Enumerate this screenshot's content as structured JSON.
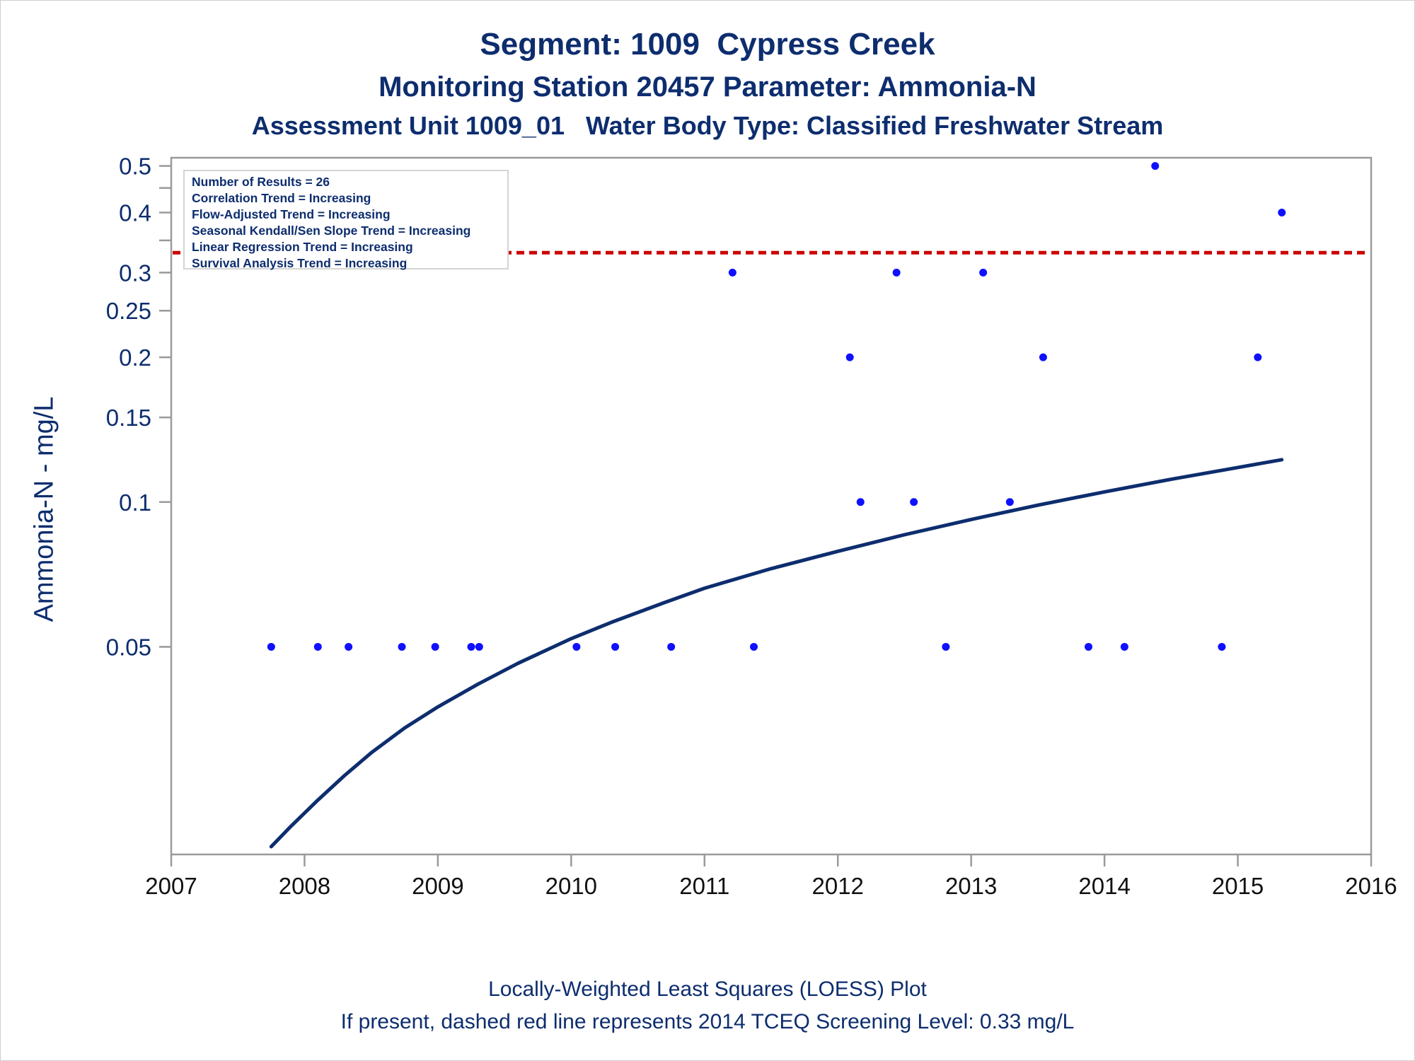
{
  "titles": {
    "line1": "Segment: 1009  Cypress Creek",
    "line2": "Monitoring Station 20457 Parameter: Ammonia-N",
    "line3": "Assessment Unit 1009_01   Water Body Type: Classified Freshwater Stream"
  },
  "footer": {
    "line1": "Locally-Weighted Least Squares (LOESS) Plot",
    "line2": "If present, dashed red line represents 2014 TCEQ Screening Level: 0.33 mg/L"
  },
  "info_box": [
    "Number of Results = 26",
    "Correlation Trend = Increasing",
    "Flow-Adjusted Trend = Increasing",
    "Seasonal Kendall/Sen Slope Trend = Increasing",
    "Linear Regression Trend = Increasing",
    "Survival Analysis Trend = Increasing"
  ],
  "colors": {
    "text": "#0d2d6e",
    "points": "#1010ff",
    "loess": "#0d2d6e",
    "screening": "#cc0000",
    "axis": "#9a9a9a"
  },
  "chart_data": {
    "type": "scatter",
    "ylabel": "Ammonia-N - mg/L",
    "xlabel": "",
    "y_scale": "log",
    "xlim": [
      2007,
      2016
    ],
    "ylim": [
      0.0185,
      0.52
    ],
    "x_ticks": [
      "2007",
      "2008",
      "2009",
      "2010",
      "2011",
      "2012",
      "2013",
      "2014",
      "2015",
      "2016"
    ],
    "y_ticks": [
      "0.05",
      "0.1",
      "0.15",
      "0.2",
      "0.25",
      "0.3",
      "0.4",
      "0.5"
    ],
    "y_minor_ticks": [
      0.35,
      0.45
    ],
    "screening_level": 0.33,
    "points": [
      {
        "x": 2007.75,
        "y": 0.05
      },
      {
        "x": 2008.1,
        "y": 0.05
      },
      {
        "x": 2008.33,
        "y": 0.05
      },
      {
        "x": 2008.73,
        "y": 0.05
      },
      {
        "x": 2008.98,
        "y": 0.05
      },
      {
        "x": 2009.25,
        "y": 0.05
      },
      {
        "x": 2009.31,
        "y": 0.05
      },
      {
        "x": 2010.04,
        "y": 0.05
      },
      {
        "x": 2010.33,
        "y": 0.05
      },
      {
        "x": 2010.75,
        "y": 0.05
      },
      {
        "x": 2011.21,
        "y": 0.3
      },
      {
        "x": 2011.37,
        "y": 0.05
      },
      {
        "x": 2012.09,
        "y": 0.2
      },
      {
        "x": 2012.17,
        "y": 0.1
      },
      {
        "x": 2012.44,
        "y": 0.3
      },
      {
        "x": 2012.57,
        "y": 0.1
      },
      {
        "x": 2012.81,
        "y": 0.05
      },
      {
        "x": 2013.09,
        "y": 0.3
      },
      {
        "x": 2013.29,
        "y": 0.1
      },
      {
        "x": 2013.54,
        "y": 0.2
      },
      {
        "x": 2013.88,
        "y": 0.05
      },
      {
        "x": 2014.15,
        "y": 0.05
      },
      {
        "x": 2014.38,
        "y": 0.5
      },
      {
        "x": 2014.88,
        "y": 0.05
      },
      {
        "x": 2015.15,
        "y": 0.2
      },
      {
        "x": 2015.33,
        "y": 0.4
      }
    ],
    "loess": [
      {
        "x": 2007.75,
        "y": 0.0192
      },
      {
        "x": 2007.9,
        "y": 0.0212
      },
      {
        "x": 2008.1,
        "y": 0.024
      },
      {
        "x": 2008.3,
        "y": 0.027
      },
      {
        "x": 2008.5,
        "y": 0.0301
      },
      {
        "x": 2008.75,
        "y": 0.0339
      },
      {
        "x": 2009.0,
        "y": 0.0375
      },
      {
        "x": 2009.3,
        "y": 0.0418
      },
      {
        "x": 2009.6,
        "y": 0.0462
      },
      {
        "x": 2010.0,
        "y": 0.052
      },
      {
        "x": 2010.3,
        "y": 0.0562
      },
      {
        "x": 2010.7,
        "y": 0.0618
      },
      {
        "x": 2011.0,
        "y": 0.0662
      },
      {
        "x": 2011.5,
        "y": 0.0727
      },
      {
        "x": 2012.0,
        "y": 0.079
      },
      {
        "x": 2012.5,
        "y": 0.0855
      },
      {
        "x": 2013.0,
        "y": 0.092
      },
      {
        "x": 2013.5,
        "y": 0.0985
      },
      {
        "x": 2014.0,
        "y": 0.105
      },
      {
        "x": 2014.5,
        "y": 0.1115
      },
      {
        "x": 2015.0,
        "y": 0.118
      },
      {
        "x": 2015.33,
        "y": 0.1225
      }
    ]
  }
}
